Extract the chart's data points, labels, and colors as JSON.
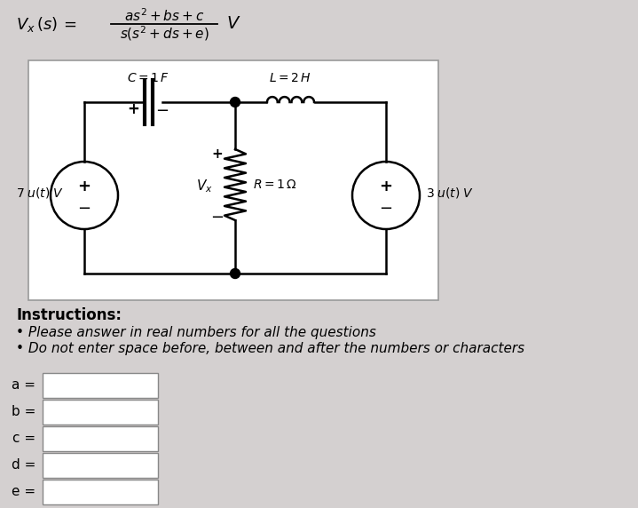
{
  "bg_color": "#d4d0d0",
  "circuit_bg": "#ffffff",
  "instructions_title": "Instructions:",
  "instruction1": "Please answer in real numbers for all the questions",
  "instruction2": "Do not enter space before, between and after the numbers or characters",
  "labels": [
    "a =",
    "b =",
    "c =",
    "d =",
    "e ="
  ]
}
